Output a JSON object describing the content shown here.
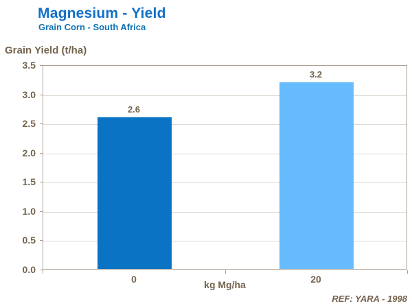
{
  "header": {
    "title": "Magnesium - Yield",
    "subtitle": "Grain Corn - South Africa"
  },
  "footer": {
    "reference": "REF: YARA - 1998"
  },
  "colors": {
    "title_blue": "#1070C8",
    "subtitle_blue": "#0F72B4",
    "text_brown": "#75634E",
    "axis_border": "#ACA094",
    "gridline": "#DED9D2",
    "bar_dark_blue": "#0B73C4",
    "bar_light_blue": "#66BBFC"
  },
  "chart_data": {
    "type": "bar",
    "title": "Magnesium - Yield",
    "subtitle": "Grain Corn - South Africa",
    "categories": [
      "0",
      "20"
    ],
    "values": [
      2.6,
      3.2
    ],
    "value_labels": [
      "2.6",
      "3.2"
    ],
    "bar_colors": [
      "#0B73C4",
      "#66BBFC"
    ],
    "xlabel": "kg Mg/ha",
    "ylabel": "Grain Yield (t/ha)",
    "ylim": [
      0,
      3.5
    ],
    "ytick_step": 0.5,
    "ytick_labels": [
      "3.5",
      "3.0",
      "2.5",
      "2.0",
      "1.5",
      "1.0",
      "0.5",
      "0.0"
    ],
    "grid": true,
    "legend": false,
    "reference": "REF: YARA - 1998"
  }
}
